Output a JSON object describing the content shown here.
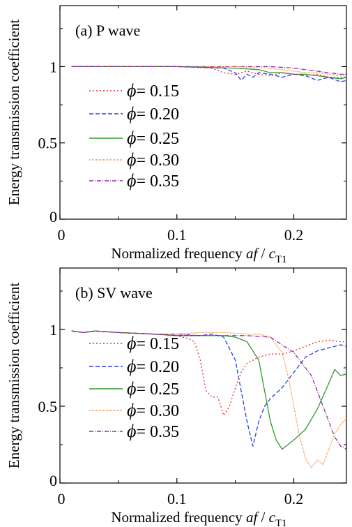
{
  "chart_data": [
    {
      "type": "line",
      "panel_label": "(a) P wave",
      "xlabel": {
        "text": "Normalized frequency ",
        "italic": "af",
        "slash": " / ",
        "c": "c",
        "sub": "T1"
      },
      "ylabel": "Energy transmission coefficient",
      "xlim": [
        0,
        0.245
      ],
      "ylim": [
        0,
        1.4
      ],
      "xticks": [
        0,
        0.1,
        0.2
      ],
      "xtick_labels": [
        "0",
        "0.1",
        "0.2"
      ],
      "yticks": [
        0,
        0.5,
        1
      ],
      "ytick_labels": [
        "0",
        "0.5",
        "1"
      ],
      "legend_position": "left",
      "series": [
        {
          "name": "ϕ = 0.15",
          "phi_symbol": "ϕ",
          "value_text": "= 0.15",
          "color": "#e8262b",
          "dash": "2,3",
          "x": [
            0.01,
            0.05,
            0.1,
            0.13,
            0.14,
            0.15,
            0.16,
            0.17,
            0.18,
            0.19,
            0.2,
            0.21,
            0.22,
            0.23,
            0.245
          ],
          "y": [
            1.0,
            1.0,
            1.0,
            0.99,
            0.96,
            0.95,
            0.97,
            0.95,
            0.94,
            0.96,
            0.95,
            0.94,
            0.95,
            0.93,
            0.93
          ]
        },
        {
          "name": "ϕ = 0.20",
          "phi_symbol": "ϕ",
          "value_text": "= 0.20",
          "color": "#2c3be8",
          "dash": "6,3",
          "x": [
            0.01,
            0.05,
            0.1,
            0.14,
            0.15,
            0.155,
            0.16,
            0.165,
            0.17,
            0.18,
            0.19,
            0.2,
            0.21,
            0.22,
            0.23,
            0.24,
            0.245
          ],
          "y": [
            1.0,
            1.0,
            1.0,
            0.99,
            0.96,
            0.91,
            0.95,
            0.93,
            0.96,
            0.95,
            0.93,
            0.95,
            0.94,
            0.91,
            0.93,
            0.9,
            0.91
          ]
        },
        {
          "name": "ϕ = 0.25",
          "phi_symbol": "ϕ",
          "value_text": "= 0.25",
          "color": "#2e9a2e",
          "dash": "",
          "x": [
            0.01,
            0.05,
            0.1,
            0.15,
            0.17,
            0.18,
            0.19,
            0.2,
            0.21,
            0.22,
            0.23,
            0.24,
            0.245
          ],
          "y": [
            1.0,
            1.0,
            1.0,
            0.99,
            0.98,
            0.96,
            0.96,
            0.95,
            0.95,
            0.94,
            0.93,
            0.92,
            0.93
          ]
        },
        {
          "name": "ϕ = 0.30",
          "phi_symbol": "ϕ",
          "value_text": "= 0.30",
          "color": "#f48a3a",
          "dash": "1,1",
          "x": [
            0.01,
            0.05,
            0.1,
            0.15,
            0.18,
            0.19,
            0.2,
            0.21,
            0.22,
            0.23,
            0.24,
            0.245
          ],
          "y": [
            1.0,
            1.0,
            1.0,
            1.0,
            0.99,
            0.98,
            0.97,
            0.96,
            0.96,
            0.95,
            0.94,
            0.94
          ]
        },
        {
          "name": "ϕ = 0.35",
          "phi_symbol": "ϕ",
          "value_text": "= 0.35",
          "color": "#8e2a9e",
          "dash": "6,2,1,2",
          "x": [
            0.01,
            0.05,
            0.1,
            0.15,
            0.18,
            0.2,
            0.21,
            0.22,
            0.23,
            0.24,
            0.245
          ],
          "y": [
            1.0,
            1.0,
            1.0,
            1.0,
            1.0,
            0.99,
            0.98,
            0.97,
            0.96,
            0.95,
            0.95
          ]
        }
      ]
    },
    {
      "type": "line",
      "panel_label": "(b) SV wave",
      "xlabel": {
        "text": "Normalized frequency ",
        "italic": "af",
        "slash": " / ",
        "c": "c",
        "sub": "T1"
      },
      "ylabel": "Energy transmission coefficient",
      "xlim": [
        0,
        0.245
      ],
      "ylim": [
        0,
        1.4
      ],
      "xticks": [
        0,
        0.1,
        0.2
      ],
      "xtick_labels": [
        "0",
        "0.1",
        "0.2"
      ],
      "yticks": [
        0,
        0.5,
        1
      ],
      "ytick_labels": [
        "0",
        "0.5",
        "1"
      ],
      "legend_position": "left",
      "series": [
        {
          "name": "ϕ = 0.15",
          "phi_symbol": "ϕ",
          "value_text": "= 0.15",
          "color": "#e8262b",
          "dash": "2,3",
          "x": [
            0.01,
            0.02,
            0.03,
            0.05,
            0.08,
            0.1,
            0.11,
            0.115,
            0.12,
            0.125,
            0.13,
            0.135,
            0.14,
            0.145,
            0.15,
            0.155,
            0.16,
            0.17,
            0.18,
            0.19,
            0.2,
            0.21,
            0.22,
            0.23,
            0.24,
            0.245
          ],
          "y": [
            0.99,
            0.98,
            0.99,
            0.98,
            0.97,
            0.96,
            0.94,
            0.92,
            0.8,
            0.6,
            0.56,
            0.56,
            0.44,
            0.5,
            0.62,
            0.72,
            0.78,
            0.82,
            0.84,
            0.84,
            0.86,
            0.89,
            0.92,
            0.93,
            0.92,
            0.92
          ]
        },
        {
          "name": "ϕ = 0.20",
          "phi_symbol": "ϕ",
          "value_text": "= 0.20",
          "color": "#2c3be8",
          "dash": "6,3",
          "x": [
            0.01,
            0.02,
            0.03,
            0.05,
            0.08,
            0.1,
            0.12,
            0.13,
            0.14,
            0.15,
            0.155,
            0.16,
            0.165,
            0.17,
            0.175,
            0.18,
            0.19,
            0.2,
            0.21,
            0.22,
            0.23,
            0.24,
            0.245
          ],
          "y": [
            0.99,
            0.98,
            0.99,
            0.98,
            0.97,
            0.96,
            0.96,
            0.97,
            0.95,
            0.8,
            0.6,
            0.4,
            0.24,
            0.4,
            0.5,
            0.55,
            0.62,
            0.72,
            0.82,
            0.86,
            0.88,
            0.9,
            0.89
          ]
        },
        {
          "name": "ϕ = 0.25",
          "phi_symbol": "ϕ",
          "value_text": "= 0.25",
          "color": "#2e9a2e",
          "dash": "",
          "x": [
            0.01,
            0.02,
            0.03,
            0.05,
            0.08,
            0.1,
            0.12,
            0.14,
            0.15,
            0.16,
            0.17,
            0.175,
            0.18,
            0.185,
            0.19,
            0.195,
            0.2,
            0.21,
            0.22,
            0.23,
            0.235,
            0.24,
            0.245
          ],
          "y": [
            0.99,
            0.98,
            0.99,
            0.98,
            0.97,
            0.96,
            0.96,
            0.96,
            0.95,
            0.92,
            0.8,
            0.6,
            0.4,
            0.28,
            0.22,
            0.25,
            0.28,
            0.35,
            0.48,
            0.65,
            0.74,
            0.7,
            0.71
          ]
        },
        {
          "name": "ϕ = 0.30",
          "phi_symbol": "ϕ",
          "value_text": "= 0.30",
          "color": "#f48a3a",
          "dash": "1,1",
          "x": [
            0.01,
            0.02,
            0.03,
            0.05,
            0.08,
            0.1,
            0.12,
            0.14,
            0.16,
            0.17,
            0.18,
            0.19,
            0.195,
            0.2,
            0.205,
            0.21,
            0.215,
            0.22,
            0.225,
            0.23,
            0.235,
            0.24,
            0.245
          ],
          "y": [
            0.99,
            0.98,
            0.99,
            0.98,
            0.97,
            0.97,
            0.98,
            0.98,
            0.97,
            0.97,
            0.95,
            0.85,
            0.7,
            0.5,
            0.3,
            0.16,
            0.1,
            0.15,
            0.12,
            0.22,
            0.32,
            0.38,
            0.42
          ]
        },
        {
          "name": "ϕ = 0.35",
          "phi_symbol": "ϕ",
          "value_text": "= 0.35",
          "color": "#8e2a9e",
          "dash": "6,2,1,2",
          "x": [
            0.01,
            0.02,
            0.03,
            0.05,
            0.08,
            0.1,
            0.12,
            0.14,
            0.16,
            0.18,
            0.19,
            0.2,
            0.21,
            0.215,
            0.22,
            0.225,
            0.23,
            0.235,
            0.24,
            0.245
          ],
          "y": [
            0.99,
            0.98,
            0.99,
            0.98,
            0.97,
            0.97,
            0.96,
            0.96,
            0.96,
            0.95,
            0.9,
            0.85,
            0.75,
            0.7,
            0.6,
            0.5,
            0.4,
            0.3,
            0.24,
            0.22
          ]
        }
      ]
    }
  ]
}
